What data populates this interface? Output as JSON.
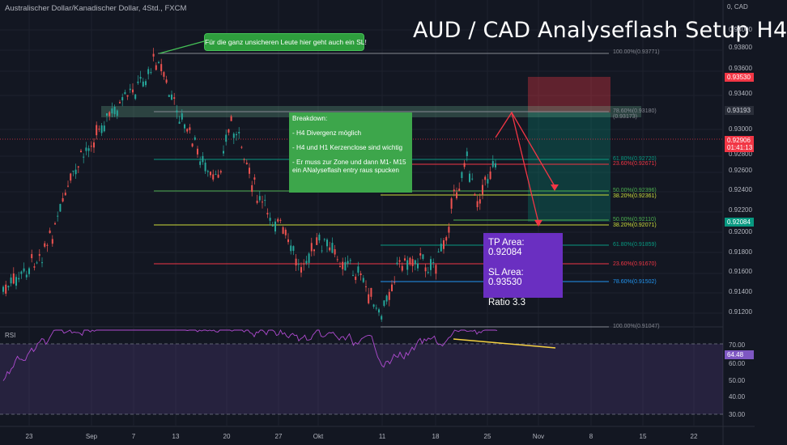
{
  "header": {
    "symbol_title": "Australischer Dollar/Kanadischer Dollar, 4Std., FXCM",
    "currency_label": "0, CAD"
  },
  "overlay": {
    "big_title": "AUD / CAD Analyseflash Setup H4",
    "callout_sl": "Für die ganz unsicheren Leute hier geht auch ein SL!",
    "breakdown": {
      "title": "Breakdown:",
      "line1": "- H4 Divergenz möglich",
      "line2": "- H4 und H1 Kerzenclose sind wichtig",
      "line3": "- Er muss zur Zone und dann M1- M15 ein ANalyseflash entry raus spucken"
    },
    "trade_box": {
      "tp": "TP Area: 0.92084",
      "sl": "SL Area: 0.93530",
      "ratio": "Ratio 3.3"
    }
  },
  "price_axis": {
    "ticks": [
      "0.94000",
      "0.93800",
      "0.93600",
      "0.93400",
      "0.93000",
      "0.92800",
      "0.92600",
      "0.92400",
      "0.92200",
      "0.92000",
      "0.91800",
      "0.91600",
      "0.91400",
      "0.91200"
    ],
    "tags": {
      "sl": "0.93530",
      "zone": "0.93193",
      "current_price": "0.92906",
      "countdown": "01:41:13",
      "tp": "0.92084"
    },
    "colors": {
      "sl": "#f23645",
      "current": "#f23645",
      "tp": "#089981",
      "zone": "#2a2e39"
    }
  },
  "fib_labels": {
    "big_100": "100.00%(0.93771)",
    "big_786": "78.60%(0.93180)",
    "big_786b": "(0.93173)",
    "big_618": "61.80%(0.92720)",
    "big_236": "23.60%(0.92671)",
    "big_50": "50.00%(0.92396)",
    "big_382": "38.20%(0.92361)",
    "big_50b": "50.00%(0.92110)",
    "big_382b": "38.20%(0.92071)",
    "small_618": "61.80%(0.91859)",
    "small_236": "23.60%(0.91670)",
    "small_786": "78.60%(0.91502)",
    "small_100": "100.00%(0.91047)"
  },
  "rsi": {
    "label": "RSI",
    "ticks": [
      "70.00",
      "60.00",
      "50.00",
      "40.00",
      "30.00"
    ],
    "value": "64.48"
  },
  "time_axis": {
    "ticks": [
      "23",
      "Sep",
      "7",
      "13",
      "20",
      "27",
      "Okt",
      "11",
      "18",
      "25",
      "Nov",
      "8",
      "15",
      "22"
    ]
  }
}
